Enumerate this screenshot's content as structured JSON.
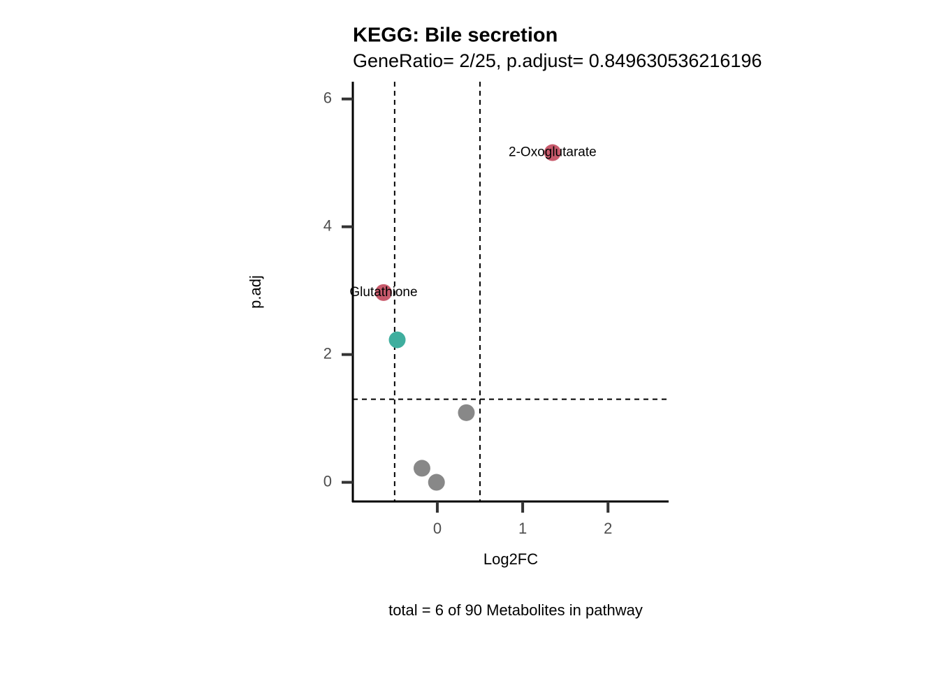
{
  "chart_data": {
    "type": "scatter",
    "title": "KEGG: Bile secretion",
    "subtitle": "GeneRatio= 2/25, p.adjust= 0.849630536216196",
    "x_label": "Log2FC",
    "y_label": "p.adj",
    "caption": "total = 6 of 90 Metabolites in pathway",
    "x": [
      1.35,
      -0.63,
      -0.47,
      0.34,
      -0.18,
      -0.01
    ],
    "values": [
      5.16,
      2.97,
      2.23,
      1.09,
      0.22,
      0.0
    ],
    "point_colors": [
      "#c85a6c",
      "#c85a6c",
      "#3fae9e",
      "#888888",
      "#888888",
      "#888888"
    ],
    "point_labels": [
      "2-Oxoglutarate",
      "Glutathione",
      null,
      null,
      null,
      null
    ],
    "xlim": [
      -0.99,
      2.71
    ],
    "ylim": [
      -0.3,
      6.27
    ],
    "xticks": [
      0,
      1,
      2
    ],
    "yticks": [
      0,
      2,
      4,
      6
    ],
    "vlines": [
      -0.5,
      0.5
    ],
    "hlines": [
      1.3
    ]
  }
}
